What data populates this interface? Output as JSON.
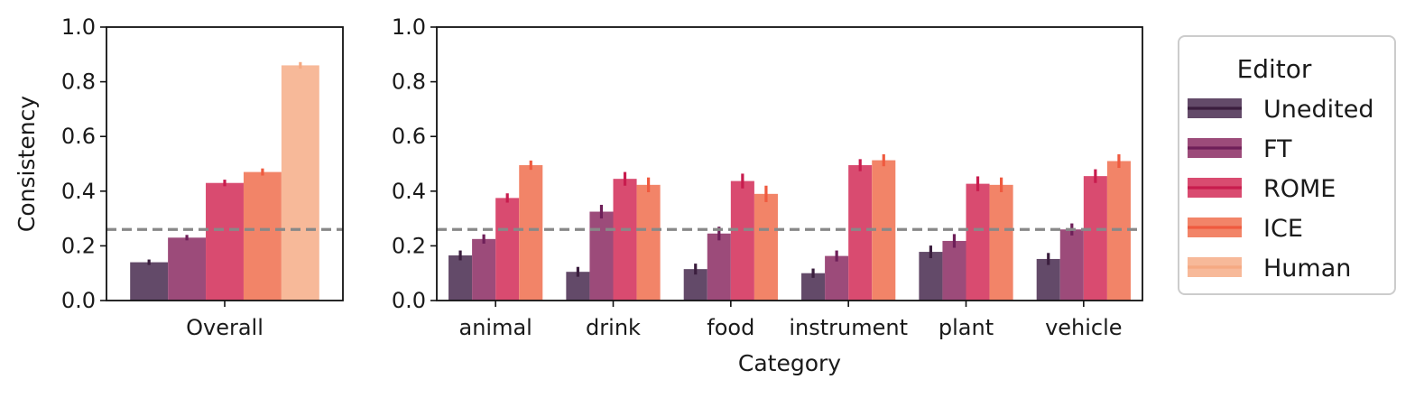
{
  "chart_data": [
    {
      "type": "bar",
      "panel": "overall",
      "categories": [
        "Overall"
      ],
      "series": [
        {
          "name": "Unedited",
          "values": [
            0.14
          ],
          "err": [
            0.01
          ]
        },
        {
          "name": "FT",
          "values": [
            0.23
          ],
          "err": [
            0.01
          ]
        },
        {
          "name": "ROME",
          "values": [
            0.43
          ],
          "err": [
            0.012
          ]
        },
        {
          "name": "ICE",
          "values": [
            0.47
          ],
          "err": [
            0.013
          ]
        },
        {
          "name": "Human",
          "values": [
            0.86
          ],
          "err": [
            0.012
          ]
        }
      ],
      "xlabel": "",
      "ylabel": "Consistency",
      "ylim": [
        0,
        1.0
      ],
      "yticks": [
        "0.0",
        "0.2",
        "0.4",
        "0.6",
        "0.8",
        "1.0"
      ],
      "reference_line": 0.26,
      "grid": false
    },
    {
      "type": "bar",
      "panel": "by-category",
      "categories": [
        "animal",
        "drink",
        "food",
        "instrument",
        "plant",
        "vehicle"
      ],
      "series": [
        {
          "name": "Unedited",
          "values": [
            0.165,
            0.105,
            0.115,
            0.1,
            0.178,
            0.152
          ],
          "err": [
            0.018,
            0.018,
            0.02,
            0.017,
            0.023,
            0.022
          ]
        },
        {
          "name": "FT",
          "values": [
            0.225,
            0.325,
            0.245,
            0.163,
            0.218,
            0.26
          ],
          "err": [
            0.017,
            0.025,
            0.025,
            0.02,
            0.025,
            0.022
          ]
        },
        {
          "name": "ROME",
          "values": [
            0.375,
            0.445,
            0.437,
            0.495,
            0.427,
            0.455
          ],
          "err": [
            0.017,
            0.025,
            0.027,
            0.022,
            0.027,
            0.025
          ]
        },
        {
          "name": "ICE",
          "values": [
            0.495,
            0.423,
            0.39,
            0.513,
            0.423,
            0.51
          ],
          "err": [
            0.017,
            0.027,
            0.03,
            0.022,
            0.027,
            0.025
          ]
        }
      ],
      "xlabel": "Category",
      "ylabel": "",
      "ylim": [
        0,
        1.0
      ],
      "yticks": [
        "0.0",
        "0.2",
        "0.4",
        "0.6",
        "0.8",
        "1.0"
      ],
      "reference_line": 0.26,
      "grid": false
    }
  ],
  "legend": {
    "title": "Editor",
    "placement": "outside-right",
    "entries": [
      "Unedited",
      "FT",
      "ROME",
      "ICE",
      "Human"
    ]
  },
  "colors": {
    "Unedited": "#634a69",
    "FT": "#9c4b7a",
    "ROME": "#d94b70",
    "ICE": "#f28468",
    "Human": "#f7b999",
    "err_Unedited": "#3b1e3e",
    "err_FT": "#6e1f59",
    "err_ROME": "#c81c4e",
    "err_ICE": "#ef5a3f",
    "err_Human": "#f5a982",
    "reference_line": "#888888",
    "axis": "#111111"
  }
}
